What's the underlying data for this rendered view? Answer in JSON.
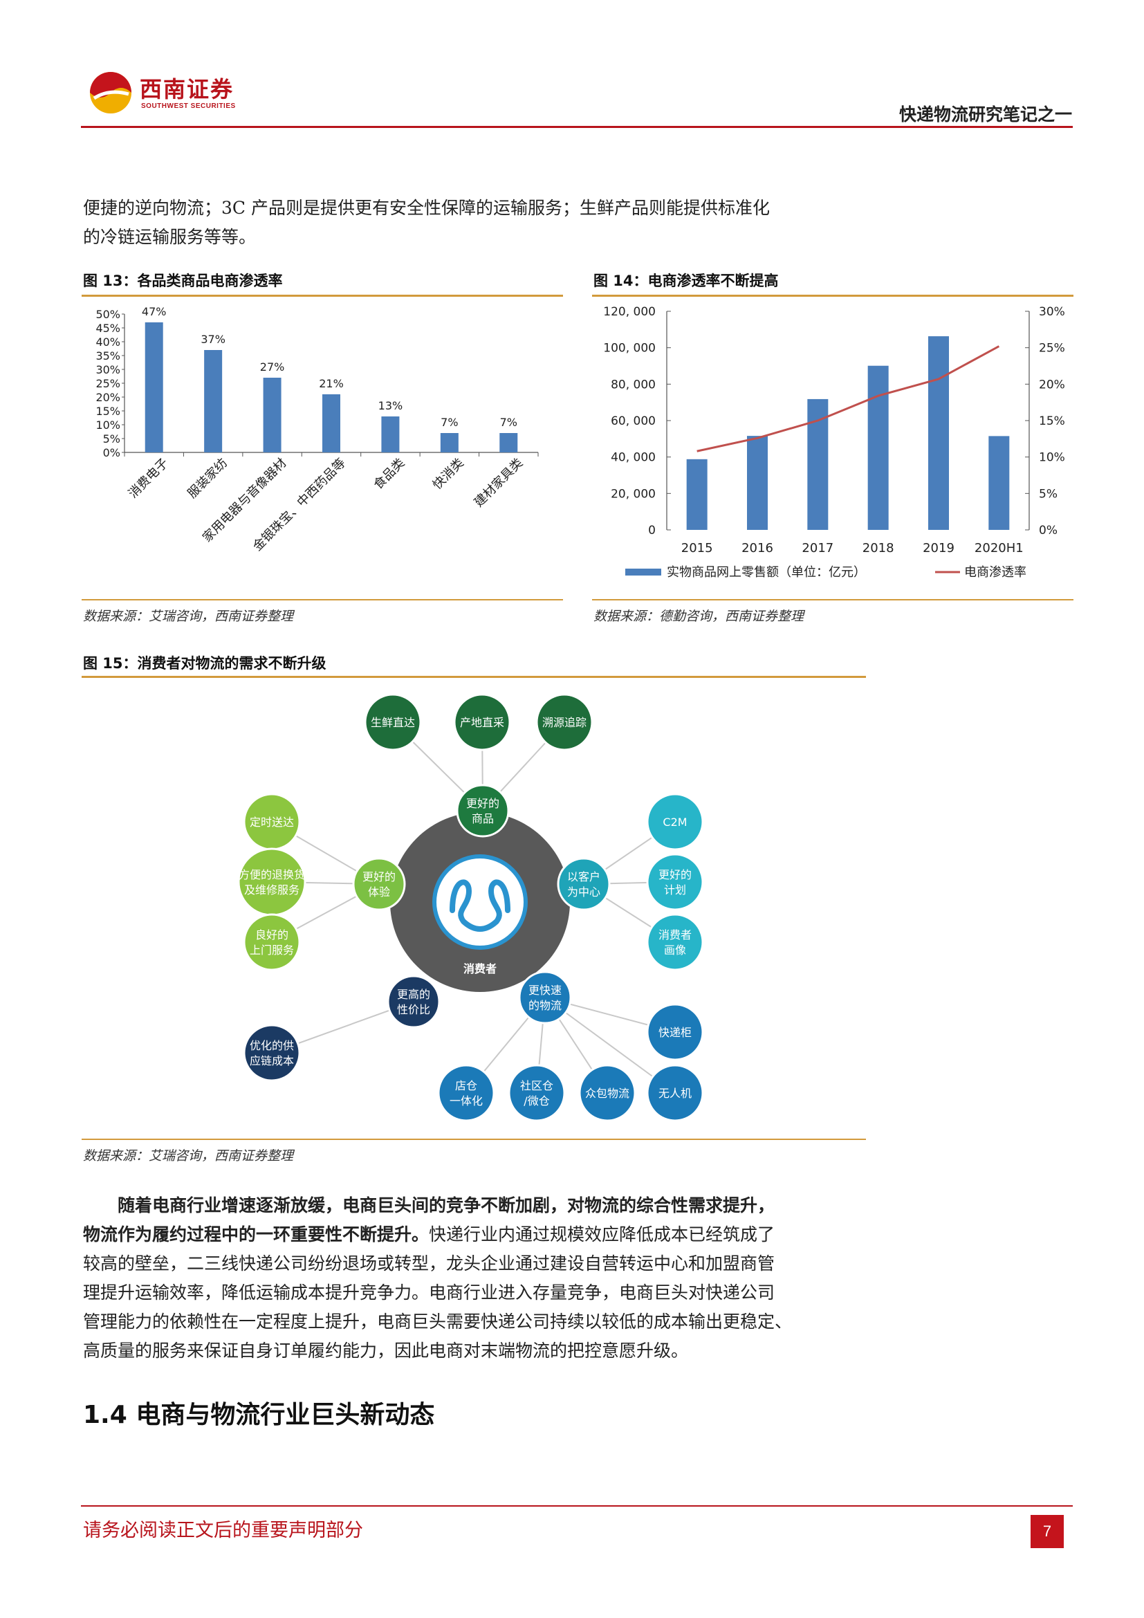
{
  "header": {
    "company_cn": "西南证券",
    "company_en": "SOUTHWEST SECURITIES",
    "report_title": "快递物流研究笔记之一"
  },
  "intro": {
    "line1": "便捷的逆向物流；3C 产品则是提供更有安全性保障的运输服务；生鲜产品则能提供标准化",
    "line2": "的冷链运输服务等等。"
  },
  "figure13": {
    "title": "图 13：各品类商品电商渗透率",
    "source": "数据来源：艾瑞咨询，西南证券整理"
  },
  "figure14": {
    "title": "图 14：电商渗透率不断提高",
    "source": "数据来源：德勤咨询，西南证券整理"
  },
  "figure15": {
    "title": "图 15：消费者对物流的需求不断升级",
    "source": "数据来源：艾瑞咨询，西南证券整理",
    "center_label": "消费者",
    "groups": {
      "goods": "更好的\n商品",
      "experience": "更好的\n体验",
      "customer": "以客户\n为中心",
      "value": "更高的\n性价比",
      "logistics": "更快速\n的物流"
    },
    "leaves": {
      "fresh": "生鲜直达",
      "origin": "产地直采",
      "trace": "溯源追踪",
      "ontime": "定时送达",
      "returns": "方便的退换货\n及维修服务",
      "doorstep": "良好的\n上门服务",
      "c2m": "C2M",
      "plan": "更好的\n计划",
      "portrait": "消费者\n画像",
      "supply": "优化的供\n应链成本",
      "locker": "快递柜",
      "store": "店仓\n一体化",
      "community": "社区仓\n/微仓",
      "crowd": "众包物流",
      "drone": "无人机"
    }
  },
  "chart_data": [
    {
      "type": "bar",
      "categories": [
        "消费电子",
        "服装家纺",
        "家用电器与音像器材",
        "金银珠宝、中西药品等",
        "食品类",
        "快消类",
        "建材家具类"
      ],
      "values": [
        47,
        37,
        27,
        21,
        13,
        7,
        7
      ],
      "value_labels": [
        "47%",
        "37%",
        "27%",
        "21%",
        "13%",
        "7%",
        "7%"
      ],
      "ylim": [
        0,
        50
      ],
      "yticks": [
        "0%",
        "5%",
        "10%",
        "15%",
        "20%",
        "25%",
        "30%",
        "35%",
        "40%",
        "45%",
        "50%"
      ],
      "color": "#4a7ebb"
    },
    {
      "type": "bar",
      "categories": [
        "2015",
        "2016",
        "2017",
        "2018",
        "2019",
        "2020H1"
      ],
      "series": [
        {
          "name": "实物商品网上零售额（单位：亿元）",
          "type": "bar",
          "axis": "left",
          "values": [
            38800,
            51600,
            71800,
            90100,
            106300,
            51500
          ],
          "color": "#4a7ebb"
        },
        {
          "name": "电商渗透率",
          "type": "line",
          "axis": "right",
          "values": [
            10.8,
            12.6,
            15.0,
            18.4,
            20.7,
            25.2
          ],
          "color": "#c0504d"
        }
      ],
      "ylim_left": [
        0,
        120000
      ],
      "ylim_right": [
        0,
        30
      ],
      "yticks_left": [
        "0",
        "20, 000",
        "40, 000",
        "60, 000",
        "80, 000",
        "100, 000",
        "120, 000"
      ],
      "yticks_right": [
        "0%",
        "5%",
        "10%",
        "15%",
        "20%",
        "25%",
        "30%"
      ],
      "legend_position": "bottom"
    }
  ],
  "body": {
    "bold1": "随着电商行业增速逐渐放缓，电商巨头间的竞争不断加剧，对物流的综合性需求提升，",
    "bold2": "物流作为履约过程中的一环重要性不断提升。",
    "rest2": "快递行业内通过规模效应降低成本已经筑成了",
    "line3": "较高的壁垒，二三线快递公司纷纷退场或转型，龙头企业通过建设自营转运中心和加盟商管",
    "line4": "理提升运输效率，降低运输成本提升竞争力。电商行业进入存量竞争，电商巨头对快递公司",
    "line5": "管理能力的依赖性在一定程度上提升，电商巨头需要快递公司持续以较低的成本输出更稳定、",
    "line6": "高质量的服务来保证自身订单履约能力，因此电商对末端物流的把控意愿升级。"
  },
  "section": {
    "number": "1.4",
    "title": "电商与物流行业巨头新动态"
  },
  "footer": {
    "note": "请务必阅读正文后的重要声明部分",
    "page": "7"
  }
}
